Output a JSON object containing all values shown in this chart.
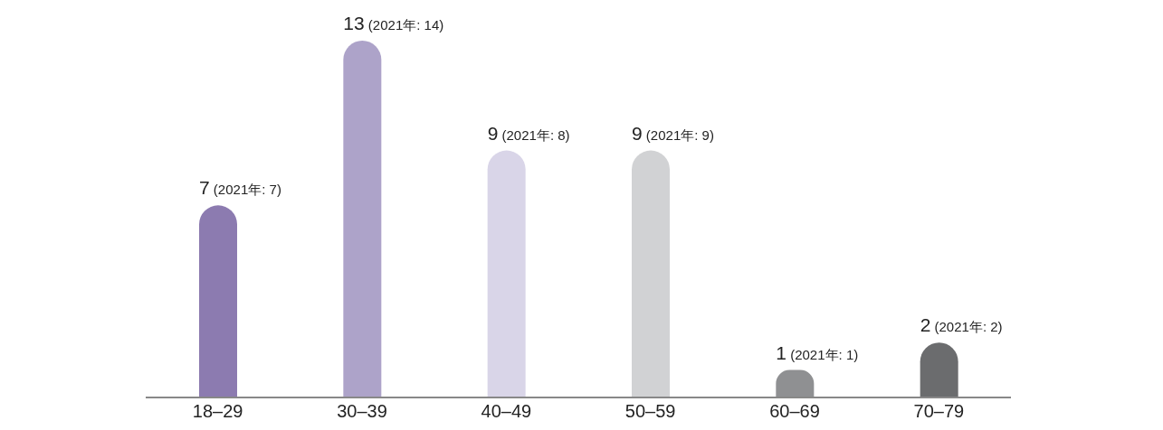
{
  "chart_data": {
    "type": "bar",
    "categories": [
      "18–29",
      "30–39",
      "40–49",
      "50–59",
      "60–69",
      "70–79"
    ],
    "values": [
      7,
      13,
      9,
      9,
      1,
      2
    ],
    "colors": [
      "#8c7bb0",
      "#ada3c9",
      "#d9d5e8",
      "#d1d2d4",
      "#8f9092",
      "#6b6c6e"
    ],
    "value_labels": [
      "7 (2021年: 7)",
      "13 (2021年: 14)",
      "9 (2021年: 8)",
      "9 (2021年: 9)",
      "1 (2021年: 1)",
      "2 (2021年: 2)"
    ],
    "grid": false,
    "legend": false
  }
}
